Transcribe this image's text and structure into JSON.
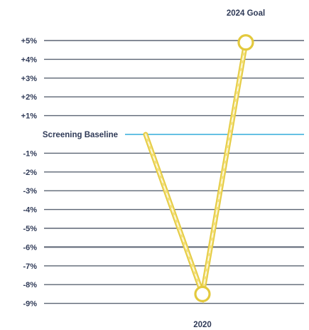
{
  "chart_data": {
    "type": "line",
    "ylim": [
      -9,
      5
    ],
    "grid": true,
    "y_ticks": [
      "+5%",
      "+4%",
      "+3%",
      "+2%",
      "+1%",
      "-1%",
      "-2%",
      "-3%",
      "-4%",
      "-5%",
      "-6%",
      "-7%",
      "-8%",
      "-9%"
    ],
    "y_tick_values": [
      5,
      4,
      3,
      2,
      1,
      -1,
      -2,
      -3,
      -4,
      -5,
      -6,
      -7,
      -8,
      -9
    ],
    "baseline": {
      "label": "Screening Baseline",
      "value": 0
    },
    "series": [
      {
        "values": [
          {
            "label": "",
            "y": 0
          },
          {
            "label": "2020",
            "y": -8.5
          },
          {
            "label": "2024 Goal",
            "y": 4.9
          }
        ]
      }
    ],
    "annotations": [
      "2020",
      "2024 Goal"
    ],
    "colors": {
      "grid": "#5b6473",
      "baseline": "#4fb8e0",
      "line": "#f3e07a",
      "line_edge": "#e3c93d",
      "marker_fill": "#ffffff",
      "text": "#2f3a57"
    }
  }
}
